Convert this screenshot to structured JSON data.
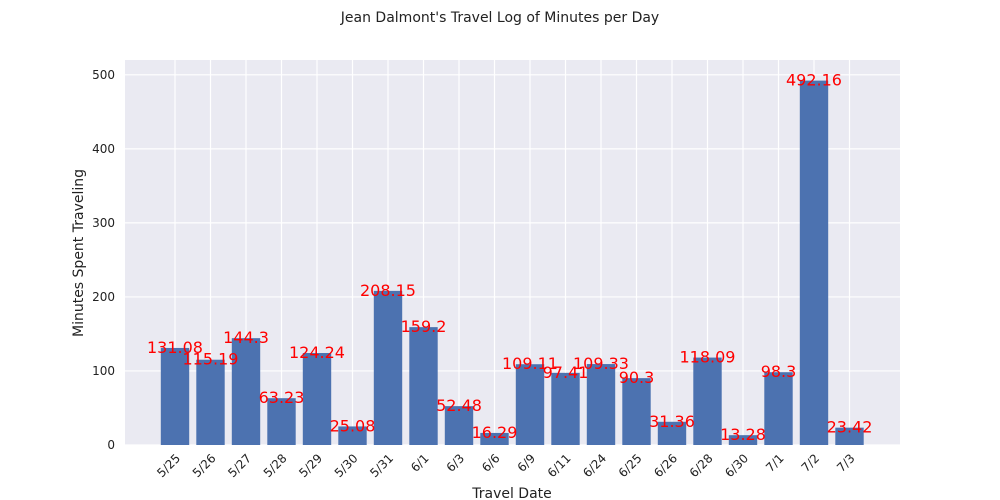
{
  "colors": {
    "bar": "#4c72b0",
    "plot_bg": "#eaeaf2",
    "grid": "#ffffff",
    "data_label": "#ff0000",
    "text": "#222222"
  },
  "chart_data": {
    "type": "bar",
    "title": "Jean Dalmont's Travel Log of Minutes per Day",
    "xlabel": "Travel Date",
    "ylabel": "Minutes Spent Traveling",
    "ylim": [
      0,
      520
    ],
    "yticks": [
      0,
      100,
      200,
      300,
      400,
      500
    ],
    "grid": true,
    "categories": [
      "5/25",
      "5/26",
      "5/27",
      "5/28",
      "5/29",
      "5/30",
      "5/31",
      "6/1",
      "6/3",
      "6/6",
      "6/9",
      "6/11",
      "6/24",
      "6/25",
      "6/26",
      "6/28",
      "6/30",
      "7/1",
      "7/2",
      "7/3"
    ],
    "values": [
      131.08,
      115.19,
      144.3,
      63.23,
      124.24,
      25.08,
      208.15,
      159.2,
      52.48,
      16.29,
      109.11,
      97.41,
      109.33,
      90.3,
      31.36,
      118.09,
      13.28,
      98.3,
      492.16,
      23.42
    ],
    "data_labels": [
      "131.08",
      "115.19",
      "144.3",
      "63.23",
      "124.24",
      "25.08",
      "208.15",
      "159.2",
      "52.48",
      "16.29",
      "109.11",
      "97.41",
      "109.33",
      "90.3",
      "31.36",
      "118.09",
      "13.28",
      "98.3",
      "492.16",
      "23.42"
    ]
  }
}
